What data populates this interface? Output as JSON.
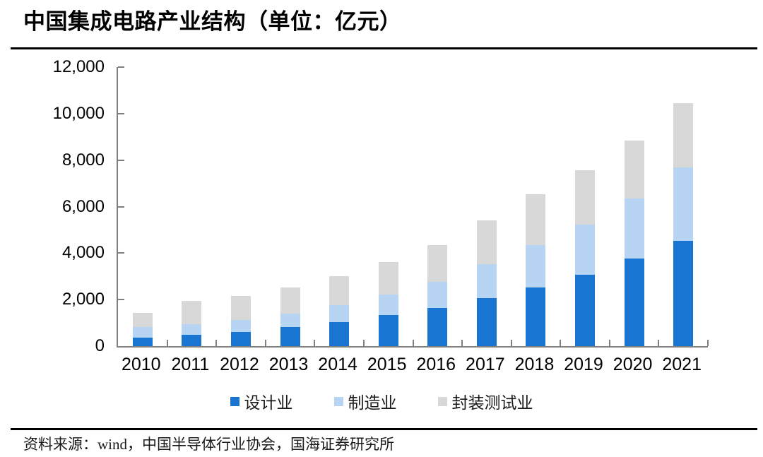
{
  "title": "中国集成电路产业结构（单位：亿元）",
  "source": "资料来源：wind，中国半导体行业协会，国海证券研究所",
  "chart_data": {
    "type": "bar",
    "stacked": true,
    "title": "中国集成电路产业结构（单位：亿元）",
    "unit": "亿元",
    "categories": [
      "2010",
      "2011",
      "2012",
      "2013",
      "2014",
      "2015",
      "2016",
      "2017",
      "2018",
      "2019",
      "2020",
      "2021"
    ],
    "series": [
      {
        "name": "设计业",
        "color": "#1876D2",
        "values": [
          363.9,
          473.7,
          621.7,
          808.8,
          1047.4,
          1325.0,
          1644.3,
          2073.5,
          2519.3,
          3063.5,
          3778.4,
          4519.0
        ]
      },
      {
        "name": "制造业",
        "color": "#B7D5F2",
        "values": [
          447.1,
          471.9,
          503.2,
          600.9,
          712.1,
          900.8,
          1126.9,
          1448.1,
          1818.2,
          2149.1,
          2560.1,
          3176.3
        ]
      },
      {
        "name": "封装测试业",
        "color": "#D8D8D8",
        "values": [
          629.2,
          988.1,
          1033.6,
          1098.8,
          1255.9,
          1384.0,
          1564.3,
          1889.7,
          2193.9,
          2349.7,
          2509.5,
          2763.0
        ]
      }
    ],
    "totals": [
      1440.2,
      1933.7,
      2158.5,
      2508.5,
      3015.4,
      3609.8,
      4335.5,
      5411.3,
      6531.4,
      7562.3,
      8848.0,
      10458.3
    ],
    "ylim": [
      0,
      12000
    ],
    "ytick_step": 2000,
    "ytick_labels": [
      "0",
      "2,000",
      "4,000",
      "6,000",
      "8,000",
      "10,000",
      "12,000"
    ],
    "grid": false,
    "legend_position": "bottom"
  }
}
